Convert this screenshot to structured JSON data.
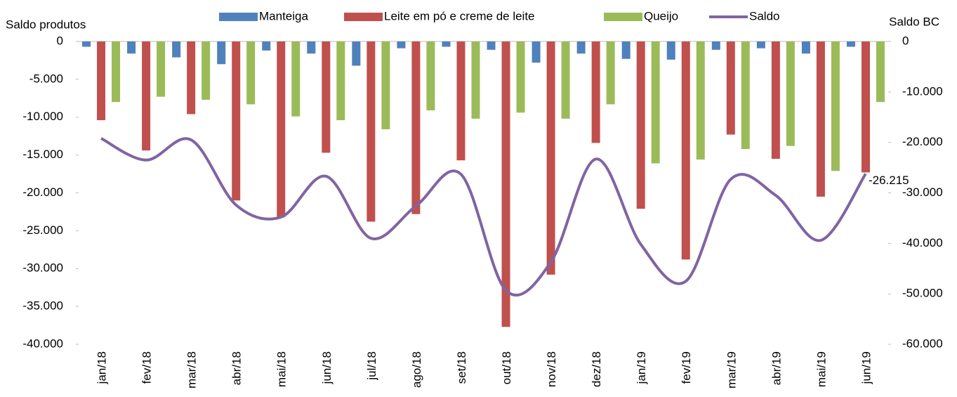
{
  "chart_data": {
    "type": "bar_line",
    "y_axis_title": "Saldo produtos",
    "y2_axis_title": "Saldo BC",
    "categories": [
      "jan/18",
      "fev/18",
      "mar/18",
      "abr/18",
      "mai/18",
      "jun/18",
      "jul/18",
      "ago/18",
      "set/18",
      "out/18",
      "nov/18",
      "dez/18",
      "jan/19",
      "fev/19",
      "mar/19",
      "abr/19",
      "mai/19",
      "jun/19"
    ],
    "series": [
      {
        "name": "Manteiga",
        "color": "#4f81bd",
        "type": "bar",
        "values": [
          -700,
          -1600,
          -2100,
          -3000,
          -1200,
          -1600,
          -3200,
          -900,
          -700,
          -1100,
          -2800,
          -1600,
          -2300,
          -2400,
          -1100,
          -900,
          -1600,
          -700
        ]
      },
      {
        "name": "Leite em pó e creme de leite",
        "color": "#c0504d",
        "type": "bar",
        "values": [
          -10400,
          -14400,
          -9600,
          -21000,
          -23200,
          -14700,
          -23800,
          -22800,
          -15700,
          -37700,
          -30800,
          -13400,
          -22100,
          -28800,
          -12300,
          -15500,
          -20500,
          -17300
        ]
      },
      {
        "name": "Queijo",
        "color": "#9bbb59",
        "type": "bar",
        "values": [
          -8000,
          -7300,
          -7700,
          -8300,
          -9900,
          -10400,
          -11600,
          -9100,
          -10200,
          -9400,
          -10200,
          -8300,
          -16100,
          -15600,
          -14200,
          -13800,
          -17100,
          -8000
        ]
      },
      {
        "name": "Saldo",
        "color": "#8064a2",
        "type": "line",
        "axis": "y2",
        "values": [
          -19200,
          -23500,
          -19500,
          -32400,
          -34800,
          -26700,
          -39000,
          -32600,
          -26300,
          -49300,
          -43700,
          -23300,
          -40200,
          -47500,
          -27300,
          -30500,
          -39400,
          -26215
        ],
        "value_labels": [
          null,
          null,
          null,
          null,
          null,
          null,
          null,
          null,
          null,
          null,
          null,
          null,
          null,
          null,
          null,
          null,
          null,
          "-26.215"
        ]
      }
    ],
    "ylim": [
      -40000,
      0
    ],
    "yticks": [
      {
        "value": -40000,
        "label": "-40.000"
      },
      {
        "value": -35000,
        "label": "-35.000"
      },
      {
        "value": -30000,
        "label": "-30.000"
      },
      {
        "value": -25000,
        "label": "-25.000"
      },
      {
        "value": -20000,
        "label": "-20.000"
      },
      {
        "value": -15000,
        "label": "-15.000"
      },
      {
        "value": -10000,
        "label": "-10.000"
      },
      {
        "value": -5000,
        "label": "-5.000"
      },
      0
    ],
    "y2lim": [
      -60000,
      0
    ],
    "y2ticks": [
      {
        "value": -60000,
        "label": "-60.000"
      },
      {
        "value": -50000,
        "label": "-50.000"
      },
      {
        "value": -40000,
        "label": "-40.000"
      },
      {
        "value": -30000,
        "label": "-30.000"
      },
      {
        "value": -20000,
        "label": "-20.000"
      },
      {
        "value": -10000,
        "label": "-10.000"
      },
      0
    ],
    "legend": "top"
  }
}
